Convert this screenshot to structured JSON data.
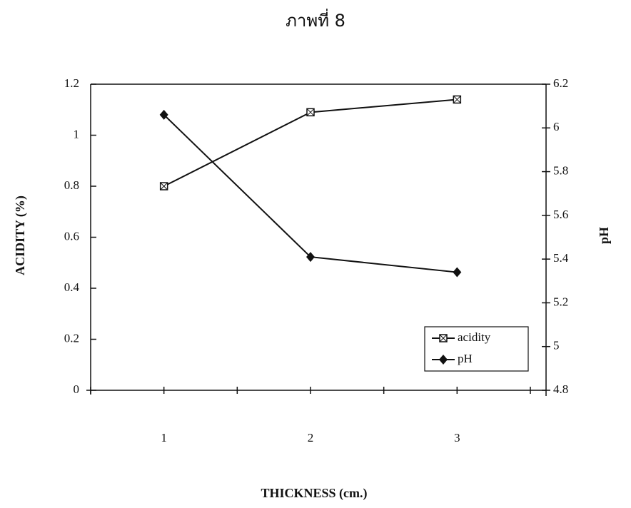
{
  "chart_data": {
    "type": "line",
    "title": "ภาพที่ 8",
    "x_label": "THICKNESS (cm.)",
    "y_label": "ACIDITY (%)",
    "y2_label": "pH",
    "categories": [
      "1",
      "2",
      "3"
    ],
    "series": [
      {
        "name": "acidity",
        "color": "#111111",
        "marker": "square",
        "values": [
          0.8,
          1.09,
          1.14
        ]
      },
      {
        "name": "pH",
        "color": "#111111",
        "marker": "diamond",
        "axis": "y2",
        "values": [
          6.06,
          5.41,
          5.34
        ]
      }
    ],
    "ylim": [
      0,
      1.2
    ],
    "yticks": [
      0,
      0.2,
      0.4,
      0.6,
      0.8,
      1,
      1.2
    ],
    "y2lim": [
      4.8,
      6.2
    ],
    "y2ticks": [
      4.8,
      5,
      5.2,
      5.4,
      5.6,
      5.8,
      6,
      6.2
    ],
    "legend": "lower-right"
  }
}
